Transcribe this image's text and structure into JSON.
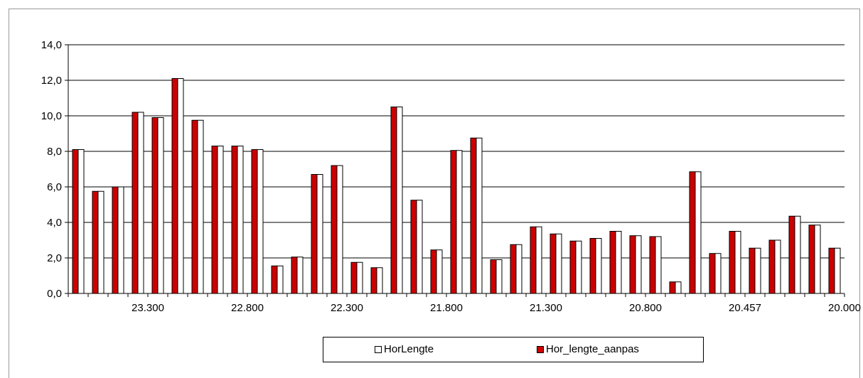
{
  "chart_data": {
    "type": "bar",
    "title": "",
    "xlabel": "",
    "ylabel": "",
    "ylim": [
      0,
      14
    ],
    "yticks": [
      "0,0",
      "2,0",
      "4,0",
      "6,0",
      "8,0",
      "10,0",
      "12,0",
      "14,0"
    ],
    "xtick_labels": [
      "23.300",
      "22.800",
      "22.300",
      "21.800",
      "21.300",
      "20.800",
      "20.457",
      "20.000"
    ],
    "grid": true,
    "legend_position": "bottom",
    "colors": {
      "HorLengte": "#ffffff",
      "Hor_lengte_aanpas": "#cc0000"
    },
    "series": [
      {
        "name": "HorLengte",
        "values": [
          8.1,
          5.75,
          6.0,
          10.2,
          9.9,
          12.1,
          9.75,
          8.3,
          8.3,
          8.1,
          1.55,
          2.05,
          6.7,
          7.2,
          1.75,
          1.45,
          10.5,
          5.25,
          2.45,
          8.05,
          8.75,
          1.9,
          2.75,
          3.75,
          3.35,
          2.95,
          3.1,
          3.5,
          3.25,
          3.2,
          0.65,
          6.85,
          2.25,
          3.5,
          2.55,
          3.0,
          4.35,
          3.85,
          2.55
        ]
      },
      {
        "name": "Hor_lengte_aanpas",
        "values": [
          8.1,
          5.75,
          6.0,
          10.2,
          9.9,
          12.1,
          9.75,
          8.3,
          8.3,
          8.1,
          1.55,
          2.05,
          6.7,
          7.2,
          1.75,
          1.45,
          10.5,
          5.25,
          2.45,
          8.05,
          8.75,
          1.9,
          2.75,
          3.75,
          3.35,
          2.95,
          3.1,
          3.5,
          3.25,
          3.2,
          0.65,
          6.85,
          2.25,
          3.5,
          2.55,
          3.0,
          4.35,
          3.85,
          2.55
        ]
      }
    ]
  }
}
